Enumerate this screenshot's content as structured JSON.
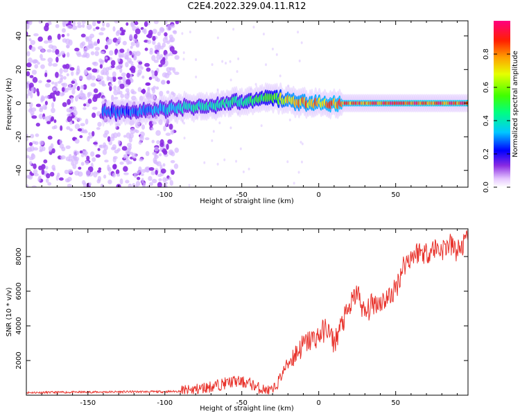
{
  "title": "C2E4.2022.329.04.11.R12",
  "chart_data": [
    {
      "type": "heatmap",
      "xlabel": "Height of straight line (km)",
      "ylabel": "Frequency (Hz)",
      "xlim": [
        -190,
        97
      ],
      "ylim": [
        -50,
        49
      ],
      "xticks": [
        -150,
        -100,
        -50,
        0,
        50
      ],
      "xtick_labels": [
        "-150",
        "-100",
        "-50",
        "0",
        "50"
      ],
      "yticks": [
        -40,
        -20,
        0,
        20,
        40
      ],
      "ytick_labels": [
        "-40",
        "-20",
        "0",
        "20",
        "40"
      ],
      "colorbar": {
        "label": "Normalized spectral amplitude",
        "range": [
          0,
          1
        ],
        "ticks": [
          0.0,
          0.2,
          0.4,
          0.6,
          0.8
        ],
        "tick_labels": [
          "0.0",
          "0.2",
          "0.4",
          "0.6",
          "0.8"
        ]
      },
      "description_points": [
        {
          "x": -120,
          "center_freq": -5,
          "max_amplitude": 0.3
        },
        {
          "x": -80,
          "center_freq": -2,
          "max_amplitude": 0.45
        },
        {
          "x": -50,
          "center_freq": 1,
          "max_amplitude": 0.5
        },
        {
          "x": -30,
          "center_freq": 4,
          "max_amplitude": 0.6
        },
        {
          "x": -20,
          "center_freq": 1,
          "max_amplitude": 0.85
        },
        {
          "x": 0,
          "center_freq": 0,
          "max_amplitude": 0.9
        },
        {
          "x": 50,
          "center_freq": 0,
          "max_amplitude": 1.0
        },
        {
          "x": 95,
          "center_freq": 0,
          "max_amplitude": 1.0
        }
      ]
    },
    {
      "type": "line",
      "xlabel": "Height of straight line (km)",
      "ylabel": "SNR (10 * v/v)",
      "xlim": [
        -190,
        97
      ],
      "ylim": [
        0,
        9600
      ],
      "xticks": [
        -150,
        -100,
        -50,
        0,
        50
      ],
      "xtick_labels": [
        "-150",
        "-100",
        "-50",
        "0",
        "50"
      ],
      "yticks": [
        2000,
        4000,
        6000,
        8000
      ],
      "ytick_labels": [
        "2000",
        "4000",
        "6000",
        "8000"
      ],
      "series": [
        {
          "name": "SNR",
          "color": "#e8312a",
          "x": [
            -190,
            -150,
            -120,
            -100,
            -85,
            -70,
            -55,
            -45,
            -40,
            -35,
            -30,
            -25,
            -20,
            -15,
            -10,
            -5,
            0,
            5,
            10,
            15,
            20,
            25,
            30,
            35,
            40,
            45,
            50,
            55,
            60,
            65,
            70,
            75,
            80,
            85,
            90,
            95
          ],
          "y": [
            150,
            180,
            200,
            200,
            250,
            500,
            800,
            700,
            450,
            300,
            200,
            1000,
            1900,
            2400,
            2900,
            3200,
            3400,
            3900,
            3000,
            4100,
            5000,
            6000,
            4600,
            5300,
            5400,
            5600,
            6100,
            7500,
            8000,
            8300,
            8200,
            8500,
            8400,
            8700,
            8300,
            8800
          ]
        }
      ]
    }
  ]
}
